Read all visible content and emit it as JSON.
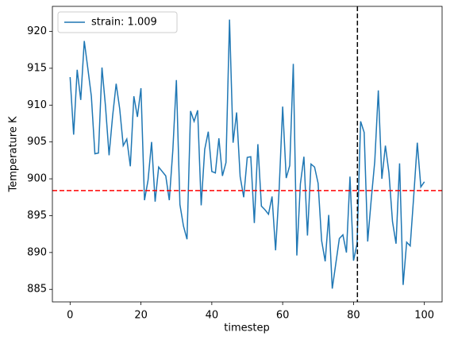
{
  "chart_data": {
    "type": "line",
    "xlabel": "timestep",
    "ylabel": "Temperature K",
    "x": [
      0,
      1,
      2,
      3,
      4,
      5,
      6,
      7,
      8,
      9,
      10,
      11,
      12,
      13,
      14,
      15,
      16,
      17,
      18,
      19,
      20,
      21,
      22,
      23,
      24,
      25,
      26,
      27,
      28,
      29,
      30,
      31,
      32,
      33,
      34,
      35,
      36,
      37,
      38,
      39,
      40,
      41,
      42,
      43,
      44,
      45,
      46,
      47,
      48,
      49,
      50,
      51,
      52,
      53,
      54,
      55,
      56,
      57,
      58,
      59,
      60,
      61,
      62,
      63,
      64,
      65,
      66,
      67,
      68,
      69,
      70,
      71,
      72,
      73,
      74,
      75,
      76,
      77,
      78,
      79,
      80,
      81,
      82,
      83,
      84,
      85,
      86,
      87,
      88,
      89,
      90,
      91,
      92,
      93,
      94,
      95,
      96,
      97,
      98,
      99,
      100
    ],
    "series": [
      {
        "name": "strain: 1.009",
        "color": "#1f77b4",
        "values": [
          913.8,
          906,
          914.8,
          910.7,
          918.7,
          915,
          911.2,
          903.4,
          903.5,
          915.1,
          909.8,
          903.2,
          908.5,
          912.9,
          909.5,
          904.5,
          905.4,
          901.7,
          911.2,
          908.4,
          912.3,
          897.1,
          899.8,
          905,
          896.9,
          901.6,
          901,
          900.4,
          897.1,
          903.9,
          913.4,
          896.5,
          893.6,
          891.8,
          909.2,
          907.8,
          909.3,
          896.4,
          904,
          906.4,
          901,
          900.8,
          905.5,
          900.4,
          902.2,
          921.6,
          904.9,
          909,
          900.3,
          897.5,
          902.9,
          903,
          894,
          904.7,
          896.3,
          895.8,
          895.2,
          897.6,
          890.3,
          898.5,
          909.8,
          900.1,
          901.8,
          915.6,
          889.6,
          899.3,
          903,
          892.3,
          902,
          901.6,
          899.4,
          891.6,
          888.8,
          895.1,
          885.1,
          888.5,
          891.9,
          892.4,
          890,
          900.3,
          888.9,
          891.2,
          907.8,
          906.3,
          891.5,
          897.2,
          902.4,
          912,
          900,
          904.5,
          900.8,
          894.2,
          891.2,
          902.1,
          885.6,
          891.4,
          890.9,
          897.7,
          904.9,
          898.9,
          899.6
        ]
      }
    ],
    "hline": {
      "value": 898.4,
      "color": "red"
    },
    "vline": {
      "value": 81.1,
      "color": "black"
    },
    "xlim": [
      -5,
      105
    ],
    "xticks": [
      0,
      20,
      40,
      60,
      80,
      100
    ],
    "ylim": [
      883.3,
      923.4
    ],
    "yticks": [
      885,
      890,
      895,
      900,
      905,
      910,
      915,
      920
    ],
    "legend": "upper left"
  }
}
